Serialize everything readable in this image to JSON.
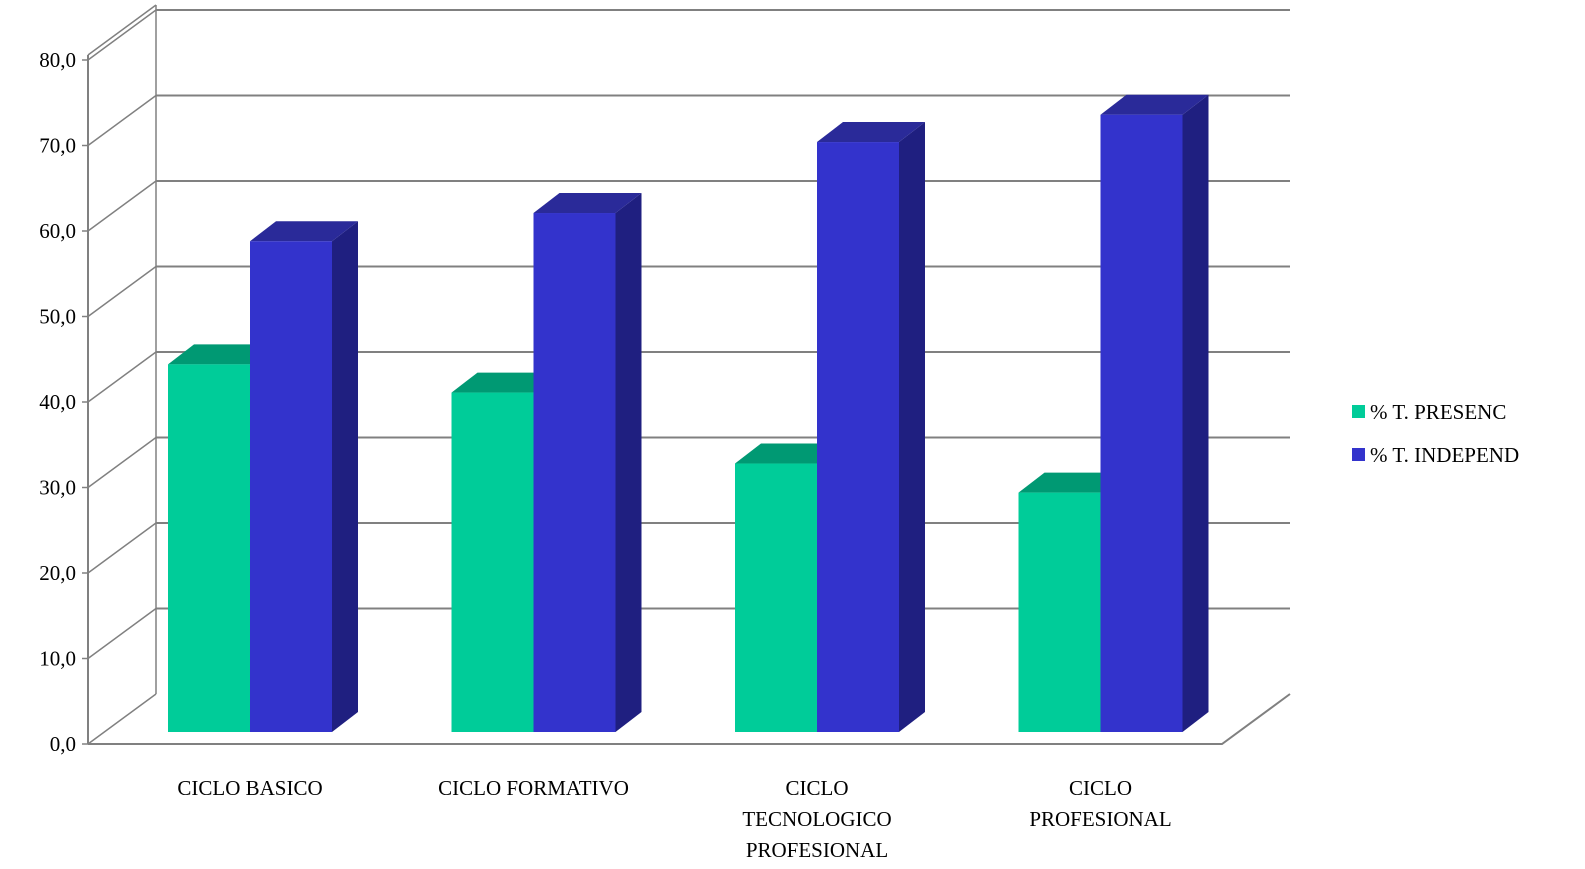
{
  "chart_data": {
    "type": "bar",
    "categories": [
      [
        "CICLO BASICO"
      ],
      [
        "CICLO FORMATIVO"
      ],
      [
        "CICLO",
        "TECNOLOGICO",
        "PROFESIONAL"
      ],
      [
        "CICLO",
        "PROFESIONAL"
      ]
    ],
    "series": [
      {
        "name": "% T. PRESENC",
        "values": [
          43.0,
          39.7,
          31.4,
          28.0
        ],
        "color": "#00CC99",
        "top_color": "#009973"
      },
      {
        "name": "% T. INDEPEND",
        "values": [
          57.4,
          60.7,
          69.0,
          72.2
        ],
        "color": "#3333CC",
        "side_color": "#1F1F80",
        "top_color": "#2A2A99"
      }
    ],
    "y_ticks": [
      "0,0",
      "10,0",
      "20,0",
      "30,0",
      "40,0",
      "50,0",
      "60,0",
      "70,0",
      "80,0"
    ],
    "ylim": [
      0,
      80
    ],
    "grid": true,
    "legend_position": "right",
    "title": "",
    "xlabel": "",
    "ylabel": ""
  }
}
